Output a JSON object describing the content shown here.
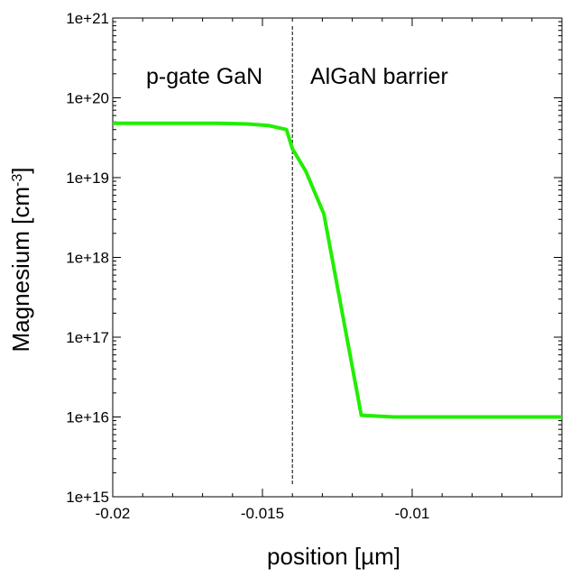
{
  "chart_data": {
    "type": "line",
    "xlabel": "position [µm]",
    "ylabel": "Magnesium [cm",
    "ylabel_exponent": "-3",
    "ylabel_close": "]",
    "xlim": [
      -0.02,
      -0.005
    ],
    "ylim": [
      1000000000000000.0,
      1e+21
    ],
    "yscale": "log",
    "x_ticks": [
      {
        "value": -0.02,
        "label": "-0.02"
      },
      {
        "value": -0.015,
        "label": "-0.015"
      },
      {
        "value": -0.01,
        "label": "-0.01"
      }
    ],
    "y_ticks": [
      {
        "value": 1000000000000000.0,
        "label": "1e+15"
      },
      {
        "value": 1e+16,
        "label": "1e+16"
      },
      {
        "value": 1e+17,
        "label": "1e+17"
      },
      {
        "value": 1e+18,
        "label": "1e+18"
      },
      {
        "value": 1e+19,
        "label": "1e+19"
      },
      {
        "value": 1e+20,
        "label": "1e+20"
      },
      {
        "value": 1e+21,
        "label": "1e+21"
      }
    ],
    "annotations": [
      {
        "text": "p-gate GaN"
      },
      {
        "text": "AlGaN barrier"
      }
    ],
    "interface_x": -0.014,
    "grid": false,
    "series": [
      {
        "color": "#22ee00",
        "x": [
          -0.02,
          -0.0165,
          -0.0155,
          -0.0148,
          -0.0142,
          -0.014,
          -0.01355,
          -0.01295,
          -0.0117,
          -0.0106,
          -0.005
        ],
        "y": [
          4.8e+19,
          4.8e+19,
          4.7e+19,
          4.5e+19,
          4e+19,
          2.3e+19,
          1.2e+19,
          3.5e+18,
          1.05e+16,
          1e+16,
          1e+16
        ]
      }
    ]
  }
}
